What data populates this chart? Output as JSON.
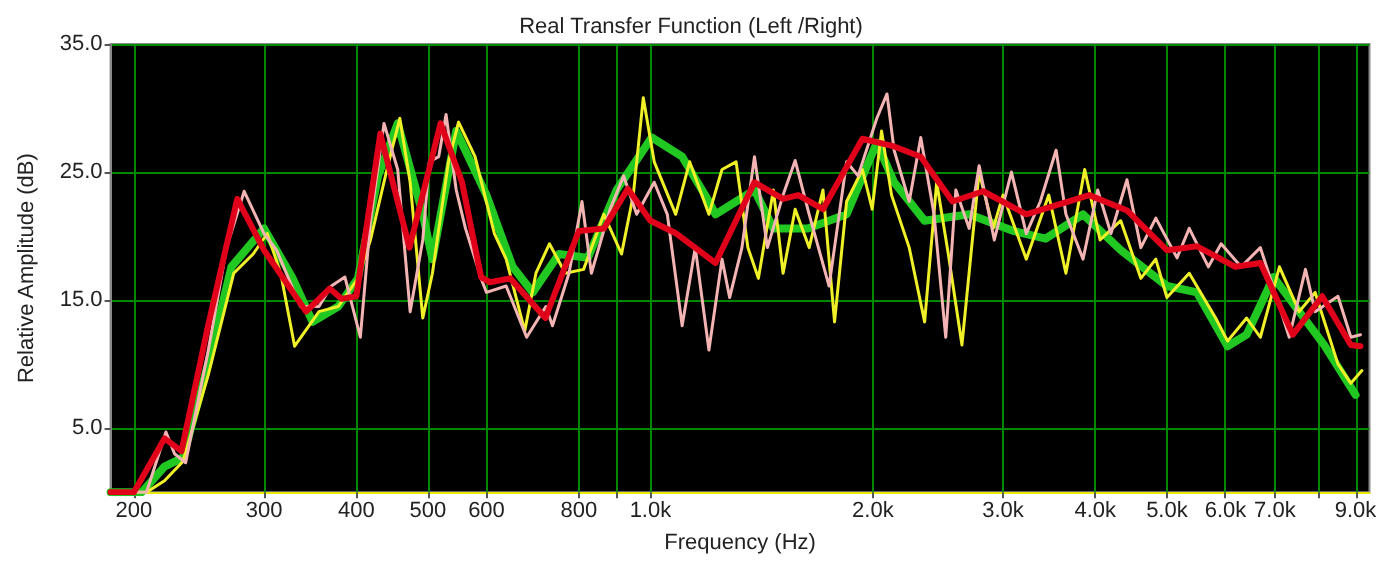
{
  "chart_data": {
    "type": "line",
    "title": "Real Transfer Function (Left /Right)",
    "xlabel": "Frequency (Hz)",
    "ylabel": "Relative Amplitude (dB)",
    "log": "x",
    "grid": true,
    "marker": "none",
    "line_style": "solid",
    "xlim": [
      186,
      9400
    ],
    "ylim": [
      0,
      35
    ],
    "xticks": [
      200,
      300,
      400,
      500,
      600,
      800,
      {
        "value": 900,
        "label": null
      },
      {
        "value": 1000,
        "label": "1.0k"
      },
      {
        "value": 2000,
        "label": "2.0k"
      },
      {
        "value": 3000,
        "label": "3.0k"
      },
      {
        "value": 4000,
        "label": "4.0k"
      },
      {
        "value": 5000,
        "label": "5.0k"
      },
      {
        "value": 6000,
        "label": "6.0k"
      },
      {
        "value": 7000,
        "label": "7.0k"
      },
      {
        "value": 8000,
        "label": null
      },
      {
        "value": 9000,
        "label": "9.0k"
      }
    ],
    "yticks": [
      {
        "value": 5,
        "label": "5.0"
      },
      {
        "value": 15,
        "label": "15.0"
      },
      {
        "value": 25,
        "label": "25.0"
      },
      {
        "value": 35,
        "label": "35.0"
      }
    ],
    "series": [
      {
        "color": "#22c822",
        "x": [
          186,
          205,
          220,
          233,
          252,
          271,
          300,
          328,
          349,
          378,
          402,
          428,
          455,
          492,
          507,
          546,
          600,
          651,
          693,
          752,
          823,
          900,
          1004,
          1104,
          1200,
          1225,
          1383,
          1467,
          1633,
          1843,
          2025,
          2137,
          2350,
          2700,
          3100,
          3426,
          3850,
          4330,
          5000,
          5492,
          6040,
          6410,
          6970,
          7550,
          8160,
          9000
        ],
        "values": [
          0,
          0,
          2,
          2.7,
          10,
          17.6,
          20.6,
          16.7,
          13.3,
          14.5,
          16.7,
          24.7,
          28.8,
          21.7,
          18.2,
          28.2,
          23.2,
          17.6,
          15.6,
          18.6,
          18.3,
          23.6,
          27.7,
          26.2,
          22.7,
          21.7,
          23.6,
          20.6,
          20.6,
          21.7,
          27.3,
          24.2,
          21.2,
          21.7,
          20.4,
          19.8,
          21.7,
          18.9,
          16.1,
          15.6,
          11.4,
          12.3,
          16.8,
          14.1,
          11.5,
          7.6
        ]
      },
      {
        "color": "#f0f028",
        "x": [
          186,
          208,
          220,
          233,
          252,
          273,
          290,
          303,
          316,
          330,
          356,
          378,
          402,
          418,
          440,
          458,
          473,
          492,
          507,
          533,
          550,
          579,
          615,
          638,
          676,
          700,
          730,
          767,
          812,
          865,
          914,
          948,
          978,
          1012,
          1082,
          1130,
          1200,
          1250,
          1306,
          1355,
          1400,
          1467,
          1512,
          1570,
          1640,
          1712,
          1775,
          1843,
          1936,
          1996,
          2055,
          2120,
          2240,
          2350,
          2440,
          2530,
          2640,
          2785,
          2910,
          3000,
          3226,
          3460,
          3650,
          3870,
          4060,
          4330,
          4610,
          4830,
          5000,
          5360,
          5820,
          6040,
          6410,
          6690,
          7100,
          7550,
          7935,
          8520,
          8870,
          9180
        ],
        "values": [
          0,
          0,
          0.9,
          2.4,
          9.1,
          17.1,
          18.6,
          20.2,
          17.1,
          11.4,
          14.1,
          14.5,
          16.7,
          19.7,
          25.2,
          29.2,
          24.2,
          13.6,
          17.1,
          25.8,
          28.9,
          26.2,
          20.2,
          18.2,
          12.6,
          17.1,
          19.4,
          17.1,
          17.4,
          21.7,
          18.6,
          23.2,
          30.8,
          25.8,
          21.7,
          25.8,
          21.7,
          25.2,
          25.8,
          19.1,
          16.7,
          23.6,
          17.1,
          22.1,
          19.1,
          23.6,
          13.3,
          22.7,
          25.2,
          22.1,
          28.2,
          23.2,
          19.1,
          13.3,
          24.2,
          18.6,
          11.5,
          25,
          20.6,
          23.2,
          18.2,
          23.2,
          17.1,
          25.2,
          19.7,
          21.2,
          16.7,
          18.2,
          15.2,
          17.1,
          13.6,
          11.8,
          13.6,
          12.1,
          17.6,
          14.1,
          15.6,
          10,
          8.5,
          9.5
        ]
      },
      {
        "color": "#f4b4b4",
        "x": [
          186,
          208,
          221,
          227,
          235,
          252,
          267,
          282,
          300,
          312,
          336,
          356,
          370,
          386,
          405,
          418,
          436,
          455,
          473,
          492,
          502,
          517,
          529,
          546,
          562,
          590,
          600,
          638,
          680,
          722,
          737,
          776,
          808,
          832,
          882,
          920,
          958,
          1012,
          1054,
          1104,
          1150,
          1200,
          1250,
          1280,
          1330,
          1383,
          1440,
          1512,
          1570,
          1640,
          1745,
          1843,
          1910,
          2025,
          2090,
          2137,
          2240,
          2322,
          2420,
          2510,
          2590,
          2700,
          2785,
          2920,
          3080,
          3226,
          3370,
          3540,
          3650,
          3850,
          4030,
          4200,
          4415,
          4610,
          4830,
          5160,
          5360,
          5690,
          5920,
          6300,
          6690,
          7100,
          7320,
          7700,
          7935,
          8520,
          8870,
          9140
        ],
        "values": [
          0,
          0,
          4.7,
          3,
          2.3,
          11,
          19.1,
          23.5,
          20.2,
          18.9,
          14.5,
          14.5,
          16.1,
          16.8,
          12.1,
          21.2,
          28.8,
          25.2,
          14.1,
          19.7,
          25.8,
          26.2,
          29.5,
          23.6,
          20.6,
          16.7,
          15.6,
          16.1,
          12.1,
          14.5,
          13,
          17.1,
          22.7,
          17.1,
          22.1,
          24.7,
          21.7,
          24.2,
          21.7,
          13,
          19.1,
          11.1,
          18.2,
          15.2,
          19.1,
          26.2,
          19.1,
          23.2,
          25.9,
          21.7,
          16.1,
          25.8,
          24.7,
          29.2,
          31.1,
          26.7,
          22.7,
          27.7,
          21.7,
          12.1,
          23.6,
          20.6,
          25.5,
          19.7,
          25,
          20.2,
          22.7,
          26.7,
          21.7,
          18.2,
          23.6,
          20.2,
          24.4,
          19.1,
          21.4,
          18.3,
          20.6,
          17.6,
          19.4,
          17.6,
          19.1,
          14.5,
          12.1,
          17.4,
          14.1,
          15.3,
          12.1,
          12.3
        ]
      },
      {
        "color": "#e0001a",
        "x": [
          186,
          200,
          220,
          232,
          252,
          276,
          300,
          342,
          368,
          382,
          400,
          431,
          472,
          520,
          556,
          590,
          606,
          646,
          721,
          800,
          865,
          932,
          1000,
          1084,
          1225,
          1383,
          1512,
          1585,
          1712,
          1936,
          2137,
          2322,
          2563,
          2821,
          3226,
          3925,
          4415,
          5000,
          5492,
          6190,
          6692,
          7403,
          8112,
          8868,
          9140
        ],
        "values": [
          0,
          0,
          4.2,
          3.2,
          13,
          22.9,
          18.9,
          14.1,
          15.9,
          15.1,
          15.3,
          28,
          19.1,
          28.8,
          24.2,
          16.8,
          16.4,
          16.7,
          13.6,
          20.4,
          20.6,
          23.7,
          21.2,
          20.2,
          17.9,
          24.2,
          22.9,
          23.2,
          22.1,
          27.6,
          27,
          26.2,
          22.7,
          23.5,
          21.7,
          23.2,
          22,
          18.9,
          19.2,
          17.6,
          17.9,
          12.3,
          15.3,
          11.5,
          11.4
        ]
      }
    ]
  }
}
